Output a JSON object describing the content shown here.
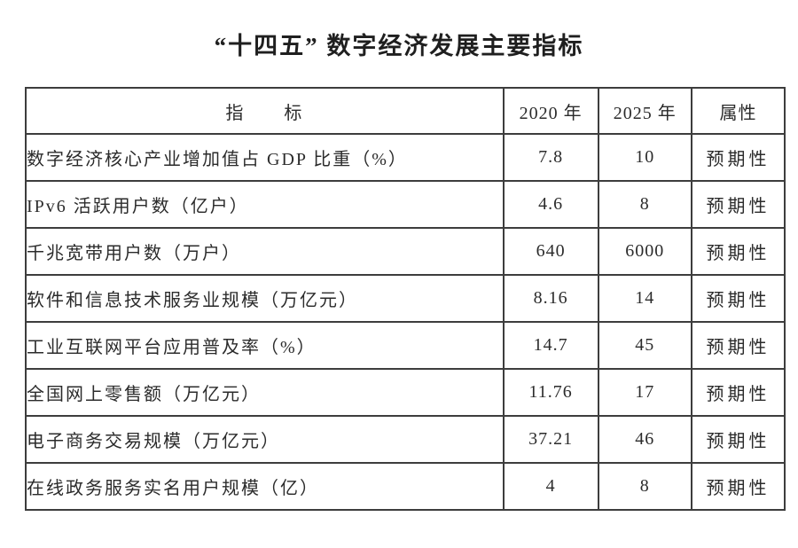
{
  "page": {
    "title": "“十四五” 数字经济发展主要指标"
  },
  "table": {
    "headers": [
      "指　　标",
      "2020 年",
      "2025 年",
      "属性"
    ],
    "rows": [
      {
        "indicator": "数字经济核心产业增加值占 GDP 比重（%）",
        "y2020": "7.8",
        "y2025": "10",
        "attribute": "预期性"
      },
      {
        "indicator": "IPv6 活跃用户数（亿户）",
        "y2020": "4.6",
        "y2025": "8",
        "attribute": "预期性"
      },
      {
        "indicator": "千兆宽带用户数（万户）",
        "y2020": "640",
        "y2025": "6000",
        "attribute": "预期性"
      },
      {
        "indicator": "软件和信息技术服务业规模（万亿元）",
        "y2020": "8.16",
        "y2025": "14",
        "attribute": "预期性"
      },
      {
        "indicator": "工业互联网平台应用普及率（%）",
        "y2020": "14.7",
        "y2025": "45",
        "attribute": "预期性"
      },
      {
        "indicator": "全国网上零售额（万亿元）",
        "y2020": "11.76",
        "y2025": "17",
        "attribute": "预期性"
      },
      {
        "indicator": "电子商务交易规模（万亿元）",
        "y2020": "37.21",
        "y2025": "46",
        "attribute": "预期性"
      },
      {
        "indicator": "在线政务服务实名用户规模（亿）",
        "y2020": "4",
        "y2025": "8",
        "attribute": "预期性"
      }
    ]
  },
  "colors": {
    "text": "#2b2b2b",
    "border": "#3d3d3d",
    "background": "#ffffff"
  },
  "chart_data": {
    "type": "table",
    "title": "“十四五”数字经济发展主要指标",
    "columns": [
      "指标",
      "2020年",
      "2025年",
      "属性"
    ],
    "rows": [
      [
        "数字经济核心产业增加值占GDP比重（%）",
        7.8,
        10,
        "预期性"
      ],
      [
        "IPv6活跃用户数（亿户）",
        4.6,
        8,
        "预期性"
      ],
      [
        "千兆宽带用户数（万户）",
        640,
        6000,
        "预期性"
      ],
      [
        "软件和信息技术服务业规模（万亿元）",
        8.16,
        14,
        "预期性"
      ],
      [
        "工业互联网平台应用普及率（%）",
        14.7,
        45,
        "预期性"
      ],
      [
        "全国网上零售额（万亿元）",
        11.76,
        17,
        "预期性"
      ],
      [
        "电子商务交易规模（万亿元）",
        37.21,
        46,
        "预期性"
      ],
      [
        "在线政务服务实名用户规模（亿）",
        4,
        8,
        "预期性"
      ]
    ]
  }
}
